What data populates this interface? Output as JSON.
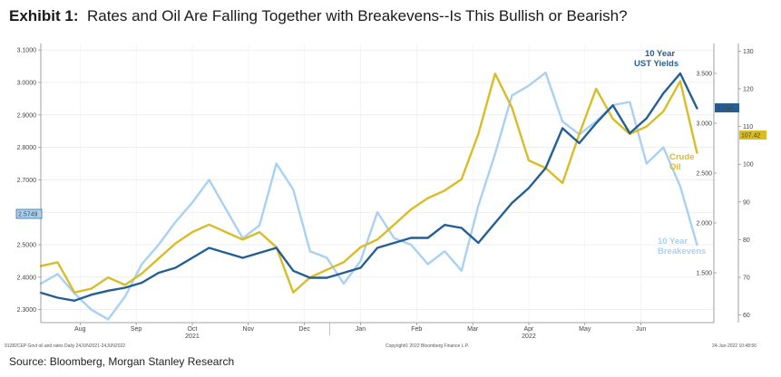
{
  "header": {
    "exhibit": "Exhibit 1:",
    "title": "Rates and Oil Are Falling Together with Breakevens--Is This Bullish or Bearish?"
  },
  "footer": {
    "left_note": "91282CEP Govt oil and rates  Daily 24JUN2021-24JUN2022",
    "center_note": "Copyright© 2022 Bloomberg Finance L.P.",
    "right_note": "24-Jun-2022 10:48:56",
    "source": "Source: Bloomberg, Morgan Stanley Research"
  },
  "colors": {
    "yield": "#245f94",
    "oil": "#d9bd27",
    "breakeven": "#a9d1f3",
    "axis": "#888888"
  },
  "chart_data": {
    "type": "line",
    "title": "Rates and Oil Are Falling Together with Breakevens--Is This Bullish or Bearish?",
    "x_months": [
      "Aug",
      "Sep",
      "Oct",
      "Nov",
      "Dec",
      "Jan",
      "Feb",
      "Mar",
      "Apr",
      "May",
      "Jun"
    ],
    "year_labels": [
      "2021",
      "2022"
    ],
    "x_range": [
      0,
      12
    ],
    "axes": {
      "left": {
        "range": [
          2.26,
          3.12
        ],
        "ticks": [
          "2.3000",
          "2.4000",
          "2.5000",
          "2.6000",
          "2.7000",
          "2.8000",
          "2.9000",
          "3.0000",
          "3.1000"
        ]
      },
      "inner_right": {
        "range": [
          1000,
          3800
        ],
        "ticks": [
          "1.500",
          "2.000",
          "2.500",
          "3.000",
          "3.500"
        ]
      },
      "outer_right": {
        "range": [
          58,
          132
        ],
        "ticks": [
          "60",
          "70",
          "80",
          "90",
          "100",
          "110",
          "120",
          "130"
        ]
      }
    },
    "last_value_tags": {
      "breakeven": "2.5749",
      "yield": "3.134",
      "oil": "107.42"
    },
    "series": [
      {
        "name": "10 Year Breakevens",
        "label": "10 Year\nBreakevens",
        "axis": "left",
        "x": [
          0,
          0.3,
          0.6,
          0.9,
          1.2,
          1.5,
          1.8,
          2.1,
          2.4,
          2.7,
          3.0,
          3.3,
          3.6,
          3.9,
          4.2,
          4.5,
          4.8,
          5.1,
          5.4,
          5.7,
          6.0,
          6.3,
          6.6,
          6.9,
          7.2,
          7.5,
          7.8,
          8.1,
          8.4,
          8.7,
          9.0,
          9.3,
          9.6,
          9.9,
          10.2,
          10.5,
          10.8,
          11.1,
          11.4,
          11.7
        ],
        "values": [
          2.38,
          2.41,
          2.35,
          2.3,
          2.27,
          2.34,
          2.44,
          2.5,
          2.57,
          2.63,
          2.7,
          2.61,
          2.52,
          2.56,
          2.75,
          2.67,
          2.48,
          2.46,
          2.38,
          2.45,
          2.6,
          2.52,
          2.5,
          2.44,
          2.48,
          2.42,
          2.62,
          2.78,
          2.96,
          2.99,
          3.03,
          2.88,
          2.84,
          2.88,
          2.93,
          2.94,
          2.75,
          2.8,
          2.68,
          2.5
        ]
      },
      {
        "name": "Crude Oil",
        "label": "Crude\nOil",
        "axis": "outer_right",
        "x": [
          0,
          0.3,
          0.6,
          0.9,
          1.2,
          1.5,
          1.8,
          2.1,
          2.4,
          2.7,
          3.0,
          3.3,
          3.6,
          3.9,
          4.2,
          4.5,
          4.8,
          5.1,
          5.4,
          5.7,
          6.0,
          6.3,
          6.6,
          6.9,
          7.2,
          7.5,
          7.8,
          8.1,
          8.4,
          8.7,
          9.0,
          9.3,
          9.6,
          9.9,
          10.2,
          10.5,
          10.8,
          11.1,
          11.4,
          11.7
        ],
        "values": [
          73,
          74,
          66,
          67,
          70,
          68,
          71,
          75,
          79,
          82,
          84,
          82,
          80,
          82,
          78,
          66,
          70,
          72,
          74,
          78,
          80,
          84,
          88,
          91,
          93,
          96,
          108,
          124,
          115,
          101,
          99,
          95,
          108,
          120,
          112,
          108,
          110,
          114,
          122,
          103
        ]
      },
      {
        "name": "10 Year UST Yields",
        "label": "10 Year\nUST Yields",
        "axis": "inner_right",
        "x": [
          0,
          0.3,
          0.6,
          0.9,
          1.2,
          1.5,
          1.8,
          2.1,
          2.4,
          2.7,
          3.0,
          3.3,
          3.6,
          3.9,
          4.2,
          4.5,
          4.8,
          5.1,
          5.4,
          5.7,
          6.0,
          6.3,
          6.6,
          6.9,
          7.2,
          7.5,
          7.8,
          8.1,
          8.4,
          8.7,
          9.0,
          9.3,
          9.6,
          9.9,
          10.2,
          10.5,
          10.8,
          11.1,
          11.4,
          11.7
        ],
        "values": [
          1300,
          1250,
          1220,
          1280,
          1320,
          1350,
          1400,
          1500,
          1550,
          1650,
          1750,
          1700,
          1650,
          1700,
          1750,
          1520,
          1450,
          1450,
          1500,
          1550,
          1750,
          1800,
          1850,
          1850,
          1980,
          1950,
          1800,
          2000,
          2200,
          2350,
          2550,
          2950,
          2800,
          3000,
          3180,
          2900,
          3050,
          3300,
          3500,
          3150
        ]
      }
    ]
  }
}
